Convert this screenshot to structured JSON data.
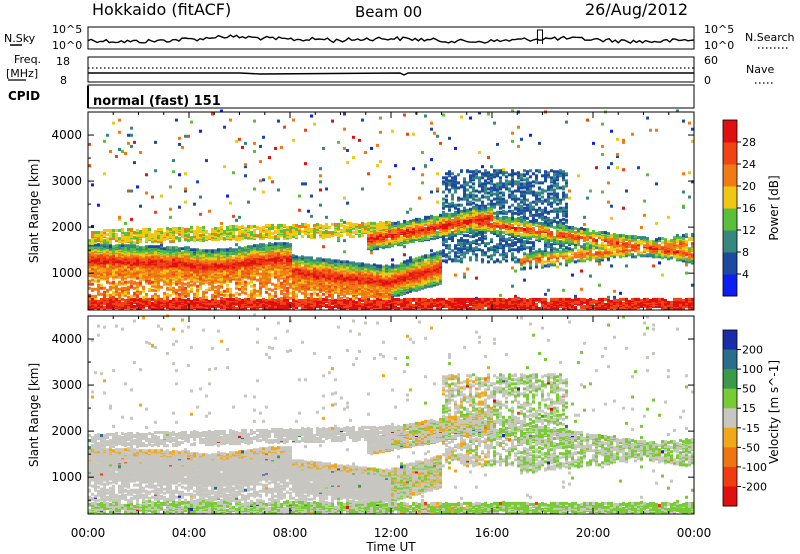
{
  "header": {
    "title": "Hokkaido (fitACF)",
    "beam": "Beam 00",
    "date": "26/Aug/2012"
  },
  "strip": {
    "nsky_label": "N.Sky",
    "nsky_top_tick": "10^5",
    "nsky_bottom_tick": "10^0",
    "nsearch_label": "N.Search",
    "nsearch_top_tick": "10^5",
    "nsearch_bottom_tick": "10^0",
    "freq_label_1": "Freq.",
    "freq_label_2": "[MHz]",
    "freq_top_tick": "18",
    "freq_bottom_tick": "8",
    "nave_label": "Nave",
    "nave_top_tick": "60",
    "nave_bottom_tick": "0",
    "cpid_label": "CPID",
    "cpid_text": "normal (fast) 151"
  },
  "chart_data": [
    {
      "type": "heatmap",
      "name": "power",
      "ylabel": "Slant Range [km]",
      "xlabel": "",
      "ylim": [
        200,
        4500
      ],
      "yticks": [
        "1000",
        "2000",
        "3000",
        "4000"
      ],
      "yticks_values": [
        1000,
        2000,
        3000,
        4000
      ],
      "colorbar_label": "Power [dB]",
      "colorbar_ticks": [
        "4",
        "8",
        "12",
        "16",
        "20",
        "24",
        "28"
      ],
      "colorbar_colors": [
        "#0d1ff0",
        "#1c4aa0",
        "#35887e",
        "#5bbf3a",
        "#f0c814",
        "#f07a14",
        "#f04414",
        "#e01010"
      ]
    },
    {
      "type": "heatmap",
      "name": "velocity",
      "ylabel": "Slant Range [km]",
      "xlabel": "Time UT",
      "ylim": [
        200,
        4500
      ],
      "yticks": [
        "1000",
        "2000",
        "3000",
        "4000"
      ],
      "yticks_values": [
        1000,
        2000,
        3000,
        4000
      ],
      "xticks": [
        "00:00",
        "04:00",
        "08:00",
        "12:00",
        "16:00",
        "20:00",
        "00:00"
      ],
      "xticks_hours": [
        0,
        4,
        8,
        12,
        16,
        20,
        24
      ],
      "colorbar_label": "Velocity [m s^-1]",
      "colorbar_ticks": [
        "200",
        "100",
        "50",
        "15",
        "-15",
        "-50",
        "-100",
        "-200"
      ],
      "colorbar_colors": [
        "#1a2ca8",
        "#2a6f8a",
        "#3a9a4a",
        "#77cc33",
        "#c8c6c0",
        "#f0a818",
        "#f07410",
        "#f03c10",
        "#e01010"
      ]
    }
  ]
}
